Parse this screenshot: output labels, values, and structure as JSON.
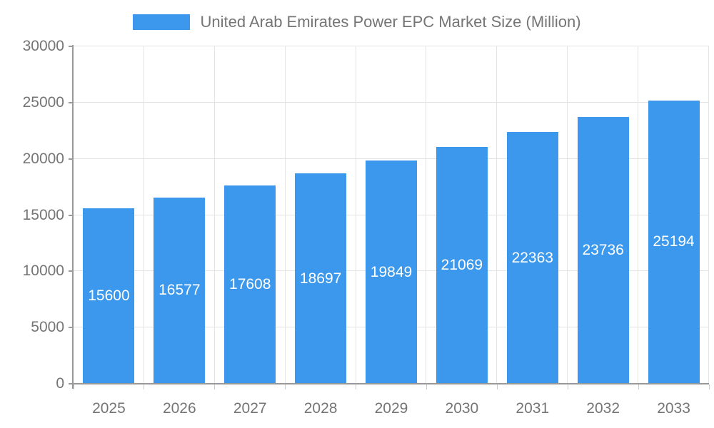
{
  "chart_data": {
    "type": "bar",
    "title": "United Arab Emirates Power EPC Market Size (Million)",
    "legend": [
      "United Arab Emirates Power EPC Market Size (Million)"
    ],
    "legend_position": "top",
    "categories": [
      "2025",
      "2026",
      "2027",
      "2028",
      "2029",
      "2030",
      "2031",
      "2032",
      "2033"
    ],
    "values": [
      15600,
      16577,
      17608,
      18697,
      19849,
      21069,
      22363,
      23736,
      25194
    ],
    "series": [
      {
        "name": "United Arab Emirates Power EPC Market Size (Million)",
        "values": [
          15600,
          16577,
          17608,
          18697,
          19849,
          21069,
          22363,
          23736,
          25194
        ]
      }
    ],
    "xlabel": "",
    "ylabel": "",
    "ylim": [
      0,
      30000
    ],
    "yticks": [
      0,
      5000,
      10000,
      15000,
      20000,
      25000,
      30000
    ],
    "grid": true,
    "bar_value_labels": "inside-center"
  },
  "colors": {
    "bar": "#3B98EC",
    "bar_label": "#FFFFFF",
    "axis_text": "#757575",
    "grid_line": "#E3E3E3",
    "axis_line": "#999999",
    "tick": "#CCCCCC",
    "background": "#FFFFFF"
  }
}
